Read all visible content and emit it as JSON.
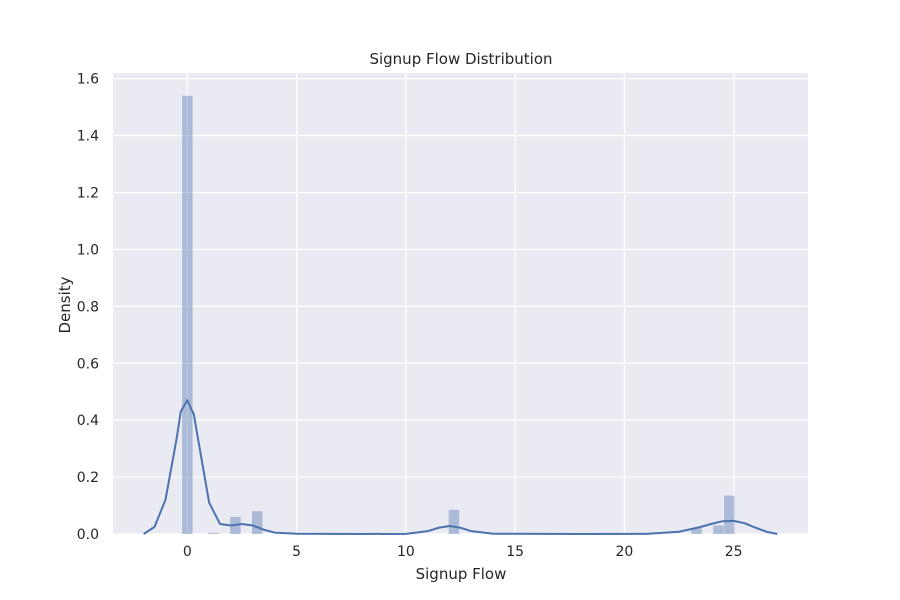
{
  "chart_data": {
    "type": "histogram",
    "title": "Signup Flow Distribution",
    "xlabel": "Signup Flow",
    "ylabel": "Density",
    "xlim": [
      -3.4,
      28.4
    ],
    "ylim": [
      0,
      1.62
    ],
    "xticks": [
      0,
      5,
      10,
      15,
      20,
      25
    ],
    "yticks": [
      0.0,
      0.2,
      0.4,
      0.6,
      0.8,
      1.0,
      1.2,
      1.4,
      1.6
    ],
    "grid": true,
    "bin_width": 0.48,
    "bins": [
      {
        "x": 0.0,
        "density": 1.54
      },
      {
        "x": 1.2,
        "density": 0.004
      },
      {
        "x": 2.2,
        "density": 0.06
      },
      {
        "x": 3.2,
        "density": 0.08
      },
      {
        "x": 12.2,
        "density": 0.085
      },
      {
        "x": 23.3,
        "density": 0.02
      },
      {
        "x": 24.3,
        "density": 0.03
      },
      {
        "x": 24.8,
        "density": 0.135
      }
    ],
    "kde": {
      "x": [
        -2.0,
        -1.5,
        -1.0,
        -0.5,
        -0.3,
        0.0,
        0.3,
        0.5,
        1.0,
        1.5,
        2.0,
        2.5,
        3.0,
        3.5,
        4.0,
        5.0,
        8.0,
        10.0,
        11.0,
        11.5,
        12.0,
        12.5,
        13.0,
        14.0,
        18.0,
        21.0,
        22.5,
        23.5,
        24.0,
        24.5,
        25.0,
        25.5,
        26.0,
        26.5,
        27.0
      ],
      "y": [
        0.0,
        0.025,
        0.12,
        0.33,
        0.43,
        0.47,
        0.42,
        0.33,
        0.11,
        0.035,
        0.03,
        0.035,
        0.03,
        0.015,
        0.005,
        0.001,
        0.0,
        0.0005,
        0.01,
        0.022,
        0.028,
        0.022,
        0.01,
        0.001,
        0.0,
        0.0005,
        0.008,
        0.025,
        0.036,
        0.045,
        0.046,
        0.038,
        0.022,
        0.008,
        0.0
      ]
    },
    "colors": {
      "background": "#eaeaf2",
      "grid": "#ffffff",
      "bar": "#4c72b0",
      "bar_opacity": 0.4,
      "kde": "#4c72b0"
    }
  }
}
